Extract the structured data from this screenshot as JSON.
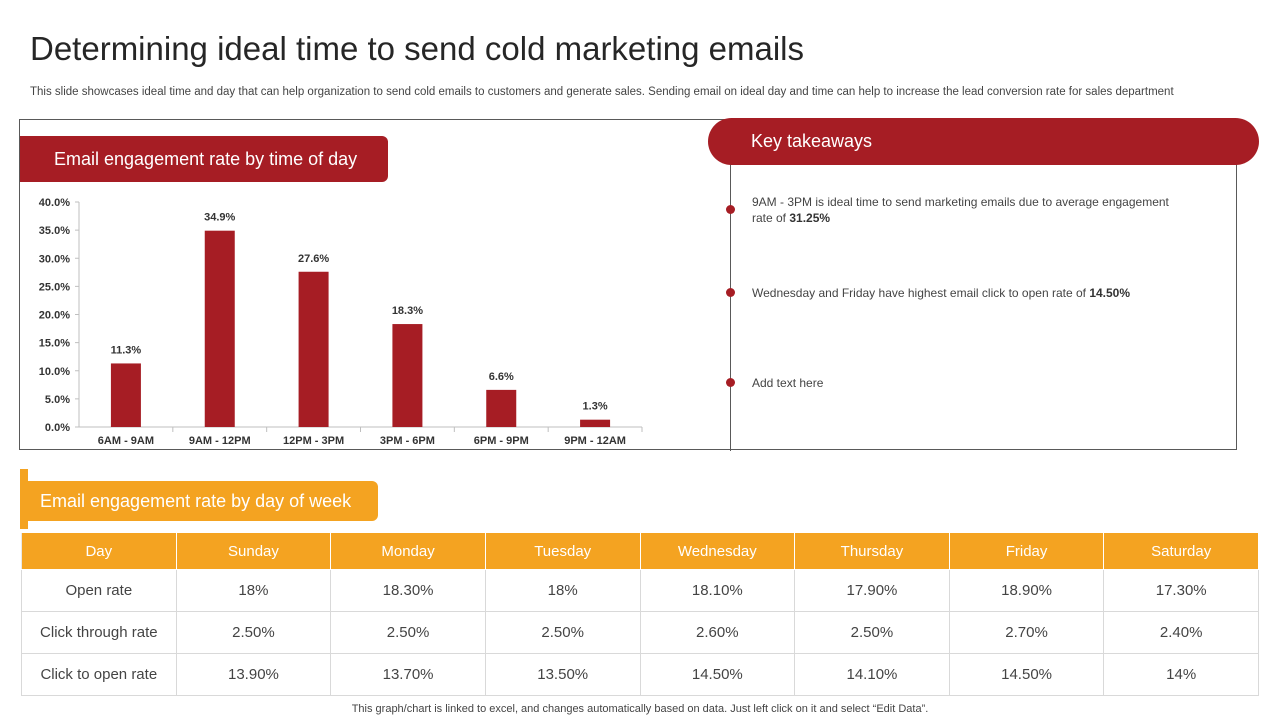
{
  "title": "Determining ideal time to send cold marketing emails",
  "subtitle": "This slide showcases ideal time and day that can help organization to send cold emails to customers and generate sales. Sending email on ideal day and time can help to increase the lead conversion rate for sales department",
  "chart_section": {
    "header": "Email engagement rate by time of day"
  },
  "chart_data": {
    "type": "bar",
    "title": "Email engagement rate by time of day",
    "categories": [
      "6AM - 9AM",
      "9AM - 12PM",
      "12PM - 3PM",
      "3PM - 6PM",
      "6PM - 9PM",
      "9PM - 12AM"
    ],
    "values": [
      11.3,
      34.9,
      27.6,
      18.3,
      6.6,
      1.3
    ],
    "value_labels": [
      "11.3%",
      "34.9%",
      "27.6%",
      "18.3%",
      "6.6%",
      "1.3%"
    ],
    "yticks": [
      0,
      5,
      10,
      15,
      20,
      25,
      30,
      35,
      40
    ],
    "ytick_labels": [
      "0.0%",
      "5.0%",
      "10.0%",
      "15.0%",
      "20.0%",
      "25.0%",
      "30.0%",
      "35.0%",
      "40.0%"
    ],
    "ylim": [
      0,
      40
    ],
    "xlabel": "",
    "ylabel": "",
    "grid": false,
    "bar_color": "#a61d24"
  },
  "key_takeaways": {
    "header": "Key takeaways",
    "points": [
      {
        "text": "9AM - 3PM is ideal time to send marketing emails due to average engagement  rate of ",
        "bold": "31.25%"
      },
      {
        "text": "Wednesday and Friday have highest email click to open rate of ",
        "bold": "14.50%"
      },
      {
        "text": "Add text here",
        "bold": ""
      }
    ]
  },
  "week_section": {
    "header": "Email engagement rate by day of week",
    "columns": [
      "Day",
      "Sunday",
      "Monday",
      "Tuesday",
      "Wednesday",
      "Thursday",
      "Friday",
      "Saturday"
    ],
    "rows": [
      [
        "Open rate",
        "18%",
        "18.30%",
        "18%",
        "18.10%",
        "17.90%",
        "18.90%",
        "17.30%"
      ],
      [
        "Click through rate",
        "2.50%",
        "2.50%",
        "2.50%",
        "2.60%",
        "2.50%",
        "2.70%",
        "2.40%"
      ],
      [
        "Click to open rate",
        "13.90%",
        "13.70%",
        "13.50%",
        "14.50%",
        "14.10%",
        "14.50%",
        "14%"
      ]
    ]
  },
  "footer": "This graph/chart is linked to excel,  and changes automatically based on data. Just left click on it and select “Edit Data”.",
  "colors": {
    "accent_red": "#a61d24",
    "accent_orange": "#f4a321"
  }
}
